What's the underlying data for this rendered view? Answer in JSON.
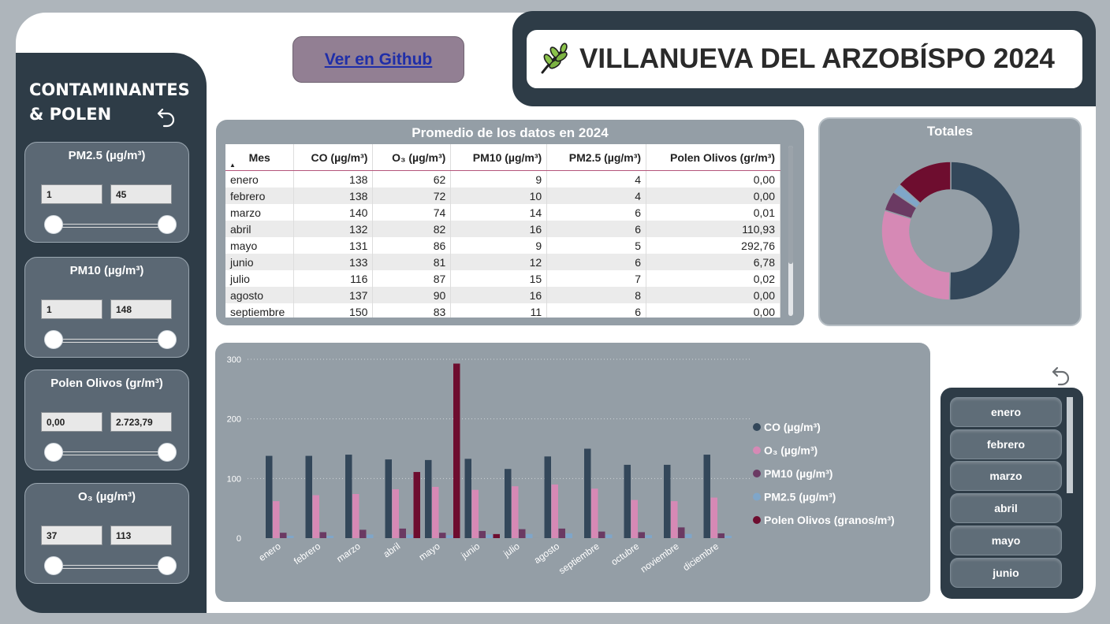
{
  "header": {
    "title": "VILLANUEVA DEL ARZOBÍSPO 2024",
    "github_label": "Ver en Github"
  },
  "left_panel": {
    "title_line1": "CONTAMINANTES",
    "title_line2": "& POLEN"
  },
  "slicers": [
    {
      "title": "PM2.5 (µg/m³)",
      "min": "1",
      "max": "45"
    },
    {
      "title": "PM10 (µg/m³)",
      "min": "1",
      "max": "148"
    },
    {
      "title": "Polen Olivos (gr/m³)",
      "min": "0,00",
      "max": "2.723,79"
    },
    {
      "title": "O₃ (µg/m³)",
      "min": "37",
      "max": "113"
    }
  ],
  "table": {
    "title": "Promedio de los datos en 2024",
    "headers": [
      "Mes",
      "CO (µg/m³)",
      "O₃ (µg/m³)",
      "PM10 (µg/m³)",
      "PM2.5 (µg/m³)",
      "Polen Olivos (gr/m³)"
    ],
    "rows": [
      [
        "enero",
        "138",
        "62",
        "9",
        "4",
        "0,00"
      ],
      [
        "febrero",
        "138",
        "72",
        "10",
        "4",
        "0,00"
      ],
      [
        "marzo",
        "140",
        "74",
        "14",
        "6",
        "0,01"
      ],
      [
        "abril",
        "132",
        "82",
        "16",
        "6",
        "110,93"
      ],
      [
        "mayo",
        "131",
        "86",
        "9",
        "5",
        "292,76"
      ],
      [
        "junio",
        "133",
        "81",
        "12",
        "6",
        "6,78"
      ],
      [
        "julio",
        "116",
        "87",
        "15",
        "7",
        "0,02"
      ],
      [
        "agosto",
        "137",
        "90",
        "16",
        "8",
        "0,00"
      ],
      [
        "septiembre",
        "150",
        "83",
        "11",
        "6",
        "0,00"
      ]
    ]
  },
  "donut": {
    "title": "Totales"
  },
  "months_slicer": [
    "enero",
    "febrero",
    "marzo",
    "abril",
    "mayo",
    "junio"
  ],
  "colors": {
    "co": "#33475a",
    "o3": "#d689b5",
    "pm10": "#6b3a63",
    "pm25": "#7fa6c9",
    "polen": "#6e0d2f",
    "dark": "#2e3c47"
  },
  "chart_data": [
    {
      "type": "bar",
      "categories": [
        "enero",
        "febrero",
        "marzo",
        "abril",
        "mayo",
        "junio",
        "julio",
        "agosto",
        "septiembre",
        "octubre",
        "noviembre",
        "diciembre"
      ],
      "series": [
        {
          "name": "CO (µg/m³)",
          "color": "#33475a",
          "values": [
            138,
            138,
            140,
            132,
            131,
            133,
            116,
            137,
            150,
            123,
            123,
            140
          ]
        },
        {
          "name": "O₃ (µg/m³)",
          "color": "#d689b5",
          "values": [
            62,
            72,
            74,
            82,
            86,
            81,
            87,
            90,
            83,
            64,
            62,
            68
          ]
        },
        {
          "name": "PM10 (µg/m³)",
          "color": "#6b3a63",
          "values": [
            9,
            10,
            14,
            16,
            9,
            12,
            15,
            16,
            11,
            10,
            18,
            8
          ]
        },
        {
          "name": "PM2.5 (µg/m³)",
          "color": "#7fa6c9",
          "values": [
            4,
            4,
            6,
            6,
            5,
            6,
            7,
            8,
            6,
            5,
            7,
            4
          ]
        },
        {
          "name": "Polen Olivos (granos/m³)",
          "color": "#6e0d2f",
          "values": [
            0,
            0,
            0.01,
            110.93,
            292.76,
            6.78,
            0.02,
            0,
            0,
            0,
            0,
            0
          ]
        }
      ],
      "ylim": [
        0,
        300
      ],
      "yticks": [
        0,
        100,
        200,
        300
      ],
      "grid": true,
      "legend": "right"
    },
    {
      "type": "pie",
      "title": "Totales",
      "donut": true,
      "labels": [
        "CO (µg/m³)",
        "O₃ (µg/m³)",
        "PM10 (µg/m³)",
        "PM2.5 (µg/m³)",
        "Polen Olivos (granos/m³)"
      ],
      "values": [
        1551,
        912,
        143,
        69,
        410.5
      ],
      "colors": [
        "#33475a",
        "#d689b5",
        "#6b3a63",
        "#7fa6c9",
        "#6e0d2f"
      ]
    }
  ]
}
